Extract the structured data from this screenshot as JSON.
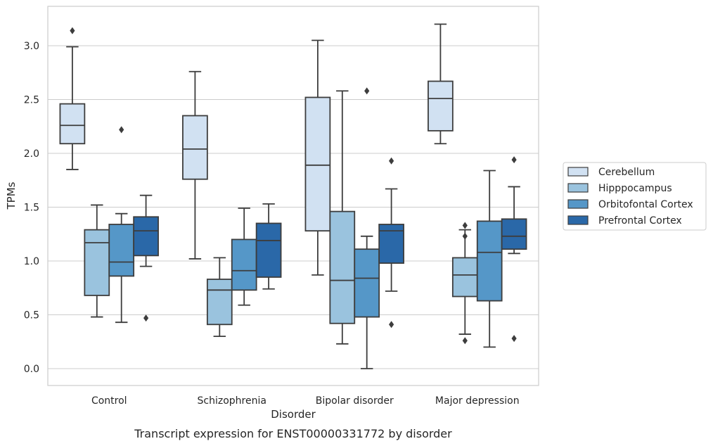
{
  "chart_data": {
    "type": "boxplot",
    "caption": "Transcript expression for ENST00000331772 by disorder",
    "xlabel": "Disorder",
    "ylabel": "TPMs",
    "ylim": [
      -0.15,
      3.35
    ],
    "yticks": [
      "0.0",
      "0.5",
      "1.0",
      "1.5",
      "2.0",
      "2.5",
      "3.0"
    ],
    "ytick_values": [
      0.0,
      0.5,
      1.0,
      1.5,
      2.0,
      2.5,
      3.0
    ],
    "grid": "horizontal",
    "legend_position": "right",
    "categories": [
      "Control",
      "Schizophrenia",
      "Bipolar disorder",
      "Major depression"
    ],
    "series": [
      {
        "name": "Cerebellum",
        "color": "#d1e1f2",
        "boxes": [
          {
            "whislo": 1.85,
            "q1": 2.09,
            "med": 2.26,
            "q3": 2.46,
            "whishi": 2.99,
            "fliers": [
              3.14
            ]
          },
          {
            "whislo": 1.02,
            "q1": 1.76,
            "med": 2.04,
            "q3": 2.35,
            "whishi": 2.76,
            "fliers": []
          },
          {
            "whislo": 0.87,
            "q1": 1.28,
            "med": 1.89,
            "q3": 2.52,
            "whishi": 3.05,
            "fliers": []
          },
          {
            "whislo": 2.09,
            "q1": 2.21,
            "med": 2.51,
            "q3": 2.67,
            "whishi": 3.2,
            "fliers": []
          }
        ]
      },
      {
        "name": "Hipppocampus",
        "color": "#9ac3de",
        "boxes": [
          {
            "whislo": 0.48,
            "q1": 0.68,
            "med": 1.17,
            "q3": 1.29,
            "whishi": 1.52,
            "fliers": []
          },
          {
            "whislo": 0.3,
            "q1": 0.41,
            "med": 0.73,
            "q3": 0.83,
            "whishi": 1.03,
            "fliers": []
          },
          {
            "whislo": 0.23,
            "q1": 0.42,
            "med": 0.82,
            "q3": 1.46,
            "whishi": 2.58,
            "fliers": []
          },
          {
            "whislo": 0.32,
            "q1": 0.67,
            "med": 0.87,
            "q3": 1.03,
            "whishi": 1.29,
            "fliers": [
              1.33,
              1.23,
              0.26
            ]
          }
        ]
      },
      {
        "name": "Orbitofontal Cortex",
        "color": "#5597c8",
        "boxes": [
          {
            "whislo": 0.43,
            "q1": 0.86,
            "med": 0.99,
            "q3": 1.34,
            "whishi": 1.44,
            "fliers": [
              2.22
            ]
          },
          {
            "whislo": 0.59,
            "q1": 0.73,
            "med": 0.91,
            "q3": 1.2,
            "whishi": 1.49,
            "fliers": []
          },
          {
            "whislo": 0.0,
            "q1": 0.48,
            "med": 0.84,
            "q3": 1.11,
            "whishi": 1.23,
            "fliers": [
              2.58
            ]
          },
          {
            "whislo": 0.2,
            "q1": 0.63,
            "med": 1.08,
            "q3": 1.37,
            "whishi": 1.84,
            "fliers": []
          }
        ]
      },
      {
        "name": "Prefrontal Cortex",
        "color": "#2a68a8",
        "boxes": [
          {
            "whislo": 0.95,
            "q1": 1.05,
            "med": 1.28,
            "q3": 1.41,
            "whishi": 1.61,
            "fliers": [
              0.47
            ]
          },
          {
            "whislo": 0.74,
            "q1": 0.85,
            "med": 1.19,
            "q3": 1.35,
            "whishi": 1.53,
            "fliers": []
          },
          {
            "whislo": 0.72,
            "q1": 0.98,
            "med": 1.28,
            "q3": 1.34,
            "whishi": 1.67,
            "fliers": [
              1.93,
              0.41
            ]
          },
          {
            "whislo": 1.07,
            "q1": 1.11,
            "med": 1.23,
            "q3": 1.39,
            "whishi": 1.69,
            "fliers": [
              1.94,
              0.28
            ]
          }
        ]
      }
    ]
  }
}
